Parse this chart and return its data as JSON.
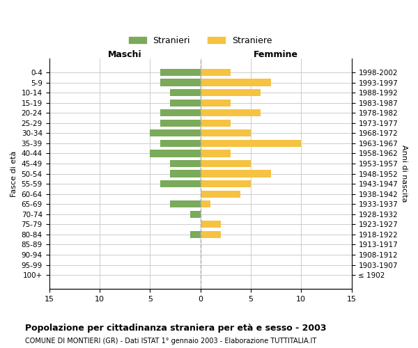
{
  "age_groups": [
    "100+",
    "95-99",
    "90-94",
    "85-89",
    "80-84",
    "75-79",
    "70-74",
    "65-69",
    "60-64",
    "55-59",
    "50-54",
    "45-49",
    "40-44",
    "35-39",
    "30-34",
    "25-29",
    "20-24",
    "15-19",
    "10-14",
    "5-9",
    "0-4"
  ],
  "birth_years": [
    "≤ 1902",
    "1903-1907",
    "1908-1912",
    "1913-1917",
    "1918-1922",
    "1923-1927",
    "1928-1932",
    "1933-1937",
    "1938-1942",
    "1943-1947",
    "1948-1952",
    "1953-1957",
    "1958-1962",
    "1963-1967",
    "1968-1972",
    "1973-1977",
    "1978-1982",
    "1983-1987",
    "1988-1992",
    "1993-1997",
    "1998-2002"
  ],
  "maschi": [
    0,
    0,
    0,
    0,
    1,
    0,
    1,
    3,
    0,
    4,
    3,
    3,
    5,
    4,
    5,
    4,
    4,
    3,
    3,
    4,
    4
  ],
  "femmine": [
    0,
    0,
    0,
    0,
    2,
    2,
    0,
    1,
    4,
    5,
    7,
    5,
    3,
    10,
    5,
    3,
    6,
    3,
    6,
    7,
    3
  ],
  "maschi_color": "#7aaa5a",
  "femmine_color": "#f5c242",
  "title_main": "Popolazione per cittadinanza straniera per età e sesso - 2003",
  "title_sub": "COMUNE DI MONTIERI (GR) - Dati ISTAT 1° gennaio 2003 - Elaborazione TUTTITALIA.IT",
  "xlabel_left": "Maschi",
  "xlabel_right": "Femmine",
  "ylabel_left": "Fasce di età",
  "ylabel_right": "Anni di nascita",
  "legend_maschi": "Stranieri",
  "legend_femmine": "Straniere",
  "xlim": 15,
  "bg_color": "#ffffff",
  "grid_color": "#cccccc"
}
